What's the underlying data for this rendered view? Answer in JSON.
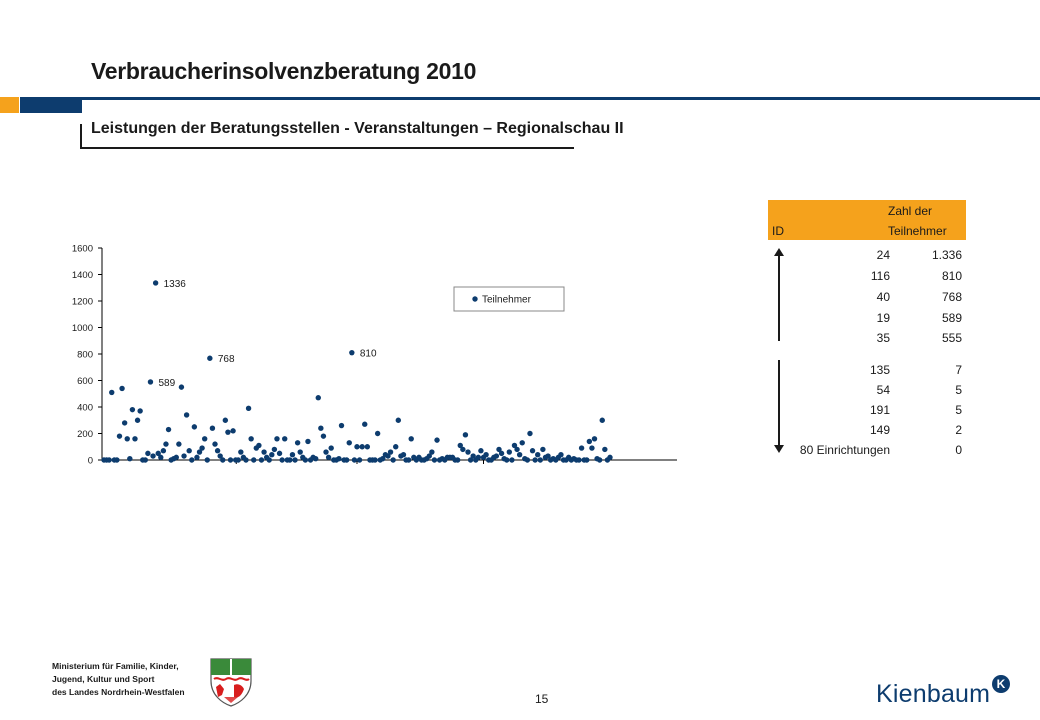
{
  "header": {
    "title": "Verbraucherinsolvenzberatung 2010",
    "subtitle": "Leistungen der Beratungsstellen - Veranstaltungen – Regionalschau II"
  },
  "colors": {
    "accent": "#f5a21c",
    "navy": "#0d3c6e",
    "marker": "#0d3c6e"
  },
  "chart_data": {
    "type": "scatter",
    "title": "",
    "xlabel": "",
    "ylabel": "",
    "ylim": [
      0,
      1600
    ],
    "yticks": [
      0,
      200,
      400,
      600,
      800,
      1000,
      1200,
      1400,
      1600
    ],
    "legend": "top-right",
    "grid": false,
    "series": [
      {
        "name": "Teilnehmer",
        "x": [
          1,
          2,
          3,
          4,
          5,
          6,
          7,
          8,
          9,
          10,
          11,
          12,
          13,
          14,
          15,
          16,
          17,
          18,
          19,
          20,
          21,
          22,
          23,
          24,
          25,
          26,
          27,
          28,
          29,
          30,
          31,
          32,
          33,
          34,
          35,
          36,
          37,
          38,
          39,
          40,
          41,
          42,
          43,
          44,
          45,
          46,
          47,
          48,
          49,
          50,
          51,
          52,
          53,
          54,
          55,
          56,
          57,
          58,
          59,
          60,
          61,
          62,
          63,
          64,
          65,
          66,
          67,
          68,
          69,
          70,
          71,
          72,
          73,
          74,
          75,
          76,
          77,
          78,
          79,
          80,
          81,
          82,
          83,
          84,
          85,
          86,
          87,
          88,
          89,
          90,
          91,
          92,
          93,
          94,
          95,
          96,
          97,
          98,
          99,
          100,
          101,
          102,
          103,
          104,
          105,
          106,
          107,
          108,
          109,
          110,
          111,
          112,
          113,
          114,
          115,
          116,
          117,
          118,
          119,
          120,
          121,
          122,
          123,
          124,
          125,
          126,
          127,
          128,
          129,
          130,
          131,
          132,
          133,
          134,
          135,
          136,
          137,
          138,
          139,
          140,
          141,
          142,
          143,
          144,
          145,
          146,
          147,
          148,
          149,
          150,
          151,
          152,
          153,
          154,
          155,
          156,
          157,
          158,
          159,
          160,
          161,
          162,
          163,
          164,
          165,
          166,
          167,
          168,
          169,
          170,
          171,
          172,
          173,
          174,
          175,
          176,
          177,
          178,
          179,
          180,
          181,
          182,
          183,
          184,
          185,
          186,
          187,
          188,
          189,
          190,
          191,
          192,
          193,
          194,
          195,
          196,
          197
        ],
        "y": [
          0,
          0,
          0,
          510,
          0,
          0,
          180,
          540,
          280,
          160,
          10,
          380,
          160,
          300,
          370,
          0,
          0,
          50,
          589,
          30,
          1336,
          50,
          20,
          70,
          120,
          230,
          0,
          10,
          20,
          120,
          550,
          30,
          340,
          70,
          0,
          250,
          20,
          60,
          90,
          160,
          0,
          768,
          240,
          120,
          70,
          30,
          0,
          300,
          210,
          0,
          220,
          0,
          0,
          60,
          20,
          0,
          390,
          160,
          0,
          90,
          110,
          0,
          60,
          20,
          0,
          40,
          80,
          160,
          50,
          0,
          160,
          0,
          0,
          40,
          0,
          130,
          60,
          20,
          0,
          140,
          0,
          20,
          10,
          470,
          240,
          180,
          60,
          20,
          90,
          0,
          0,
          10,
          260,
          0,
          0,
          130,
          810,
          0,
          100,
          0,
          100,
          270,
          100,
          0,
          0,
          0,
          200,
          0,
          10,
          40,
          30,
          60,
          0,
          100,
          300,
          30,
          40,
          0,
          0,
          160,
          20,
          0,
          20,
          0,
          0,
          10,
          30,
          60,
          0,
          150,
          0,
          10,
          0,
          20,
          20,
          20,
          0,
          0,
          110,
          80,
          190,
          60,
          0,
          30,
          0,
          20,
          70,
          20,
          40,
          0,
          0,
          20,
          30,
          80,
          50,
          10,
          0,
          60,
          0,
          110,
          80,
          40,
          130,
          10,
          0,
          200,
          70,
          0,
          40,
          0,
          80,
          20,
          30,
          0,
          10,
          0,
          20,
          40,
          0,
          0,
          20,
          0,
          10,
          0,
          0,
          90,
          0,
          0,
          140,
          90,
          160,
          10,
          0,
          300,
          80,
          0,
          20
        ]
      }
    ],
    "annotations": [
      {
        "x": 21,
        "y": 1336,
        "label": "1336"
      },
      {
        "x": 42,
        "y": 768,
        "label": "768"
      },
      {
        "x": 19,
        "y": 589,
        "label": "589"
      },
      {
        "x": 97,
        "y": 810,
        "label": "810"
      }
    ]
  },
  "table": {
    "header_id": "ID",
    "header_value_line1": "Zahl der",
    "header_value_line2": "Teilnehmer",
    "top_rows": [
      {
        "id": "24",
        "value": "1.336"
      },
      {
        "id": "116",
        "value": "810"
      },
      {
        "id": "40",
        "value": "768"
      },
      {
        "id": "19",
        "value": "589"
      },
      {
        "id": "35",
        "value": "555"
      }
    ],
    "bottom_rows": [
      {
        "id": "135",
        "value": "7"
      },
      {
        "id": "54",
        "value": "5"
      },
      {
        "id": "191",
        "value": "5"
      },
      {
        "id": "149",
        "value": "2"
      },
      {
        "id": "80 Einrichtungen",
        "value": "0"
      }
    ]
  },
  "footer": {
    "ministry_line1": "Ministerium für Familie, Kinder,",
    "ministry_line2": "Jugend, Kultur und Sport",
    "ministry_line3": "des Landes Nordrhein-Westfalen",
    "page_number": "15",
    "brand": "Kienbaum",
    "brand_mark": "K"
  }
}
